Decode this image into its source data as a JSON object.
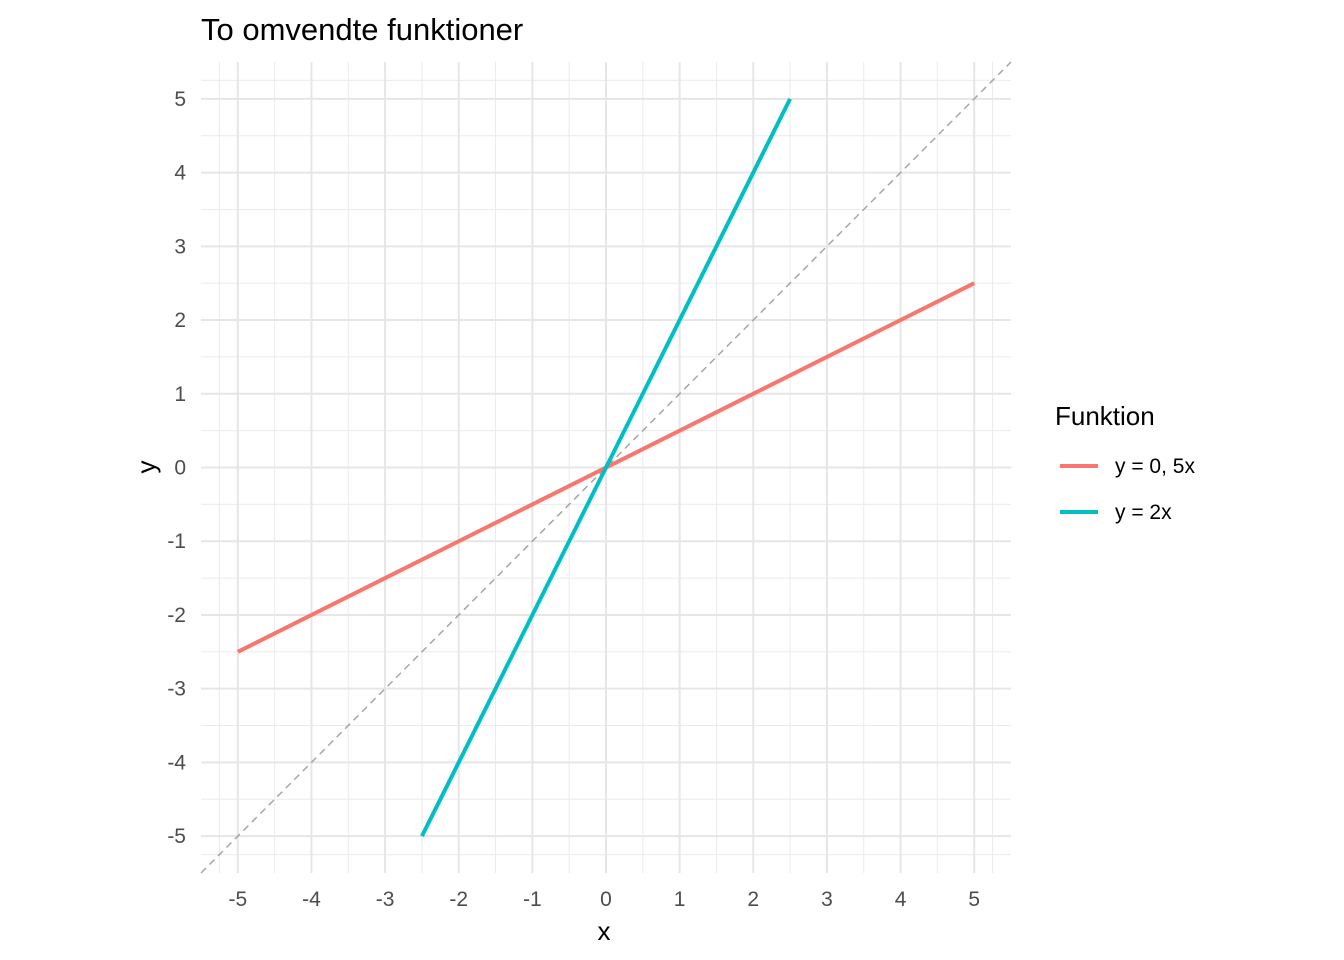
{
  "chart_data": {
    "type": "line",
    "title": "To omvendte funktioner",
    "xlabel": "x",
    "ylabel": "y",
    "xlim": [
      -5.5,
      5.5
    ],
    "ylim": [
      -5.5,
      5.5
    ],
    "x_ticks": [
      -5,
      -4,
      -3,
      -2,
      -1,
      0,
      1,
      2,
      3,
      4,
      5
    ],
    "y_ticks": [
      -5,
      -4,
      -3,
      -2,
      -1,
      0,
      1,
      2,
      3,
      4,
      5
    ],
    "x_tick_labels": [
      "-5",
      "-4",
      "-3",
      "-2",
      "-1",
      "0",
      "1",
      "2",
      "3",
      "4",
      "5"
    ],
    "y_tick_labels": [
      "-5",
      "-4",
      "-3",
      "-2",
      "-1",
      "0",
      "1",
      "2",
      "3",
      "4",
      "5"
    ],
    "grid": true,
    "legend": {
      "title": "Funktion",
      "position": "right"
    },
    "series": [
      {
        "name": "y = 0, 5x",
        "color": "#F8766D",
        "x": [
          -5,
          5
        ],
        "y": [
          -2.5,
          2.5
        ]
      },
      {
        "name": "y = 2x",
        "color": "#00BFC4",
        "x": [
          -2.5,
          2.5
        ],
        "y": [
          -5,
          5
        ]
      }
    ],
    "reference_line": {
      "x": [
        -5.5,
        5.5
      ],
      "y": [
        -5.5,
        5.5
      ],
      "style": "dashed",
      "color": "#a6a6a6"
    }
  }
}
